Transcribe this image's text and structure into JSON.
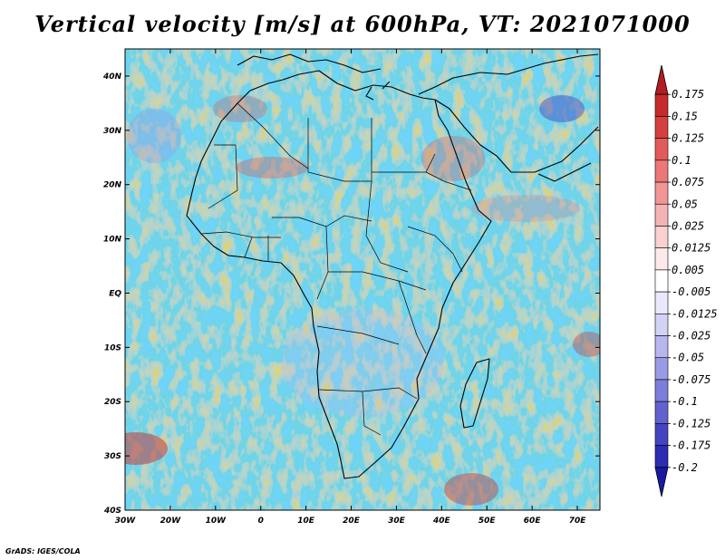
{
  "title": "Vertical velocity [m/s] at 600hPa, VT: 2021071000",
  "footer": "GrADS: IGES/COLA",
  "chart_data": {
    "type": "heatmap",
    "variable": "Vertical velocity",
    "units": "m/s",
    "level": "600hPa",
    "valid_time": "2021071000",
    "region": "Africa",
    "x_ticks": [
      "30W",
      "20W",
      "10W",
      "0",
      "10E",
      "20E",
      "30E",
      "40E",
      "50E",
      "60E",
      "70E"
    ],
    "y_ticks": [
      "40N",
      "30N",
      "20N",
      "10N",
      "EQ",
      "10S",
      "20S",
      "30S",
      "40S"
    ],
    "xlim": [
      -30,
      75
    ],
    "ylim": [
      -40,
      45
    ],
    "colorbar": {
      "levels": [
        "0.175",
        "0.15",
        "0.125",
        "0.1",
        "0.075",
        "0.05",
        "0.025",
        "0.0125",
        "0.005",
        "-0.005",
        "-0.0125",
        "-0.025",
        "-0.05",
        "-0.075",
        "-0.1",
        "-0.125",
        "-0.175",
        "-0.2"
      ],
      "colors": [
        "#b11d22",
        "#c52b2b",
        "#d64040",
        "#e35a5a",
        "#ec7777",
        "#f29595",
        "#f6b3b3",
        "#fad0d0",
        "#fde9e9",
        "#ffffff",
        "#e9e9fb",
        "#d2d2f5",
        "#b7b7ee",
        "#9a9ae5",
        "#7d7ddb",
        "#6161d0",
        "#4444c2",
        "#2c2cb4",
        "#1a1aa0"
      ]
    }
  }
}
